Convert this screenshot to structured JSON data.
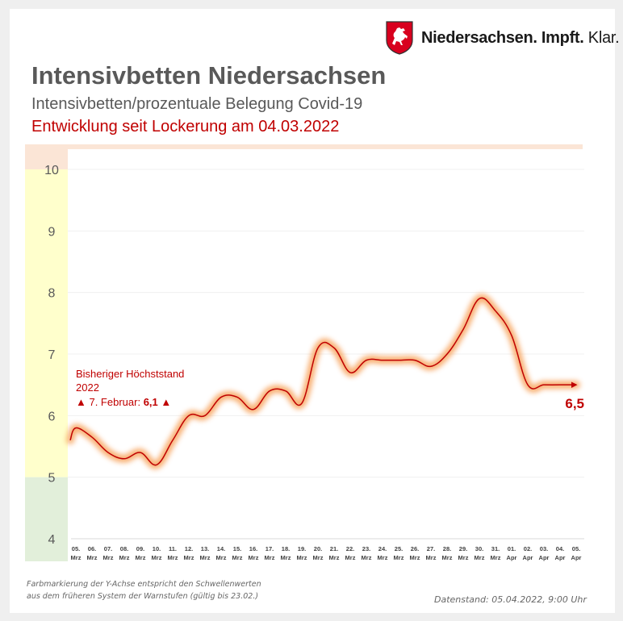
{
  "logo": {
    "icon": "lower-saxony-horse-shield-icon",
    "part1": "Niedersachsen. Impft.",
    "part2": " Klar."
  },
  "header": {
    "title": "Intensivbetten Niedersachsen",
    "subtitle": "Intensivbetten/prozentuale Belegung Covid-19",
    "subtitle2": "Entwicklung seit Lockerung am 04.03.2022"
  },
  "colors": {
    "line": "#c00000",
    "glow": "#f7a35c",
    "band_red": "#fbe5d6",
    "band_yellow": "#ffffcc",
    "band_green": "#e2efda",
    "grid": "#f0f0f0",
    "axis_text": "#595959"
  },
  "chart_data": {
    "type": "line",
    "title": "Intensivbetten Niedersachsen",
    "xlabel": "",
    "ylabel": "",
    "ylim": [
      4,
      10
    ],
    "yticks": [
      "4",
      "5",
      "6",
      "7",
      "8",
      "9",
      "10"
    ],
    "grid": true,
    "legend": "none",
    "threshold_bands": [
      {
        "from": 10,
        "to": 10.4,
        "color": "red"
      },
      {
        "from": 5,
        "to": 10,
        "color": "yellow"
      },
      {
        "from": 4,
        "to": 5,
        "color": "green"
      }
    ],
    "categories": [
      [
        "05.",
        "Mrz"
      ],
      [
        "06.",
        "Mrz"
      ],
      [
        "07.",
        "Mrz"
      ],
      [
        "08.",
        "Mrz"
      ],
      [
        "09.",
        "Mrz"
      ],
      [
        "10.",
        "Mrz"
      ],
      [
        "11.",
        "Mrz"
      ],
      [
        "12.",
        "Mrz"
      ],
      [
        "13.",
        "Mrz"
      ],
      [
        "14.",
        "Mrz"
      ],
      [
        "15.",
        "Mrz"
      ],
      [
        "16.",
        "Mrz"
      ],
      [
        "17.",
        "Mrz"
      ],
      [
        "18.",
        "Mrz"
      ],
      [
        "19.",
        "Mrz"
      ],
      [
        "20.",
        "Mrz"
      ],
      [
        "21.",
        "Mrz"
      ],
      [
        "22.",
        "Mrz"
      ],
      [
        "23.",
        "Mrz"
      ],
      [
        "24.",
        "Mrz"
      ],
      [
        "25.",
        "Mrz"
      ],
      [
        "26.",
        "Mrz"
      ],
      [
        "27.",
        "Mrz"
      ],
      [
        "28.",
        "Mrz"
      ],
      [
        "29.",
        "Mrz"
      ],
      [
        "30.",
        "Mrz"
      ],
      [
        "31.",
        "Mrz"
      ],
      [
        "01.",
        "Apr"
      ],
      [
        "02.",
        "Apr"
      ],
      [
        "03.",
        "Apr"
      ],
      [
        "04.",
        "Apr"
      ],
      [
        "05.",
        "Apr"
      ]
    ],
    "series": [
      {
        "name": "Intensivbetten Belegung (%)",
        "values": [
          5.8,
          5.65,
          5.4,
          5.3,
          5.4,
          5.2,
          5.6,
          6.0,
          6.0,
          6.3,
          6.3,
          6.1,
          6.4,
          6.4,
          6.2,
          7.1,
          7.1,
          6.7,
          6.9,
          6.9,
          6.9,
          6.9,
          6.8,
          7.0,
          7.4,
          7.9,
          7.7,
          7.3,
          6.5,
          6.5,
          6.5,
          6.5
        ]
      }
    ],
    "start_value_left_edge": 5.6,
    "last_value_label": "6,5",
    "annotation": {
      "line1": "Bisheriger Höchststand",
      "line2": "2022",
      "line3_prefix": "▲ 7. Februar: ",
      "line3_value": "6,1",
      "line3_suffix": " ▲"
    }
  },
  "footer": {
    "note_line1": "Farbmarkierung der Y-Achse entspricht den Schwellenwerten",
    "note_line2": "aus dem früheren System der Warnstufen (gültig bis 23.02.)",
    "datenstand": "Datenstand: 05.04.2022, 9:00 Uhr"
  }
}
